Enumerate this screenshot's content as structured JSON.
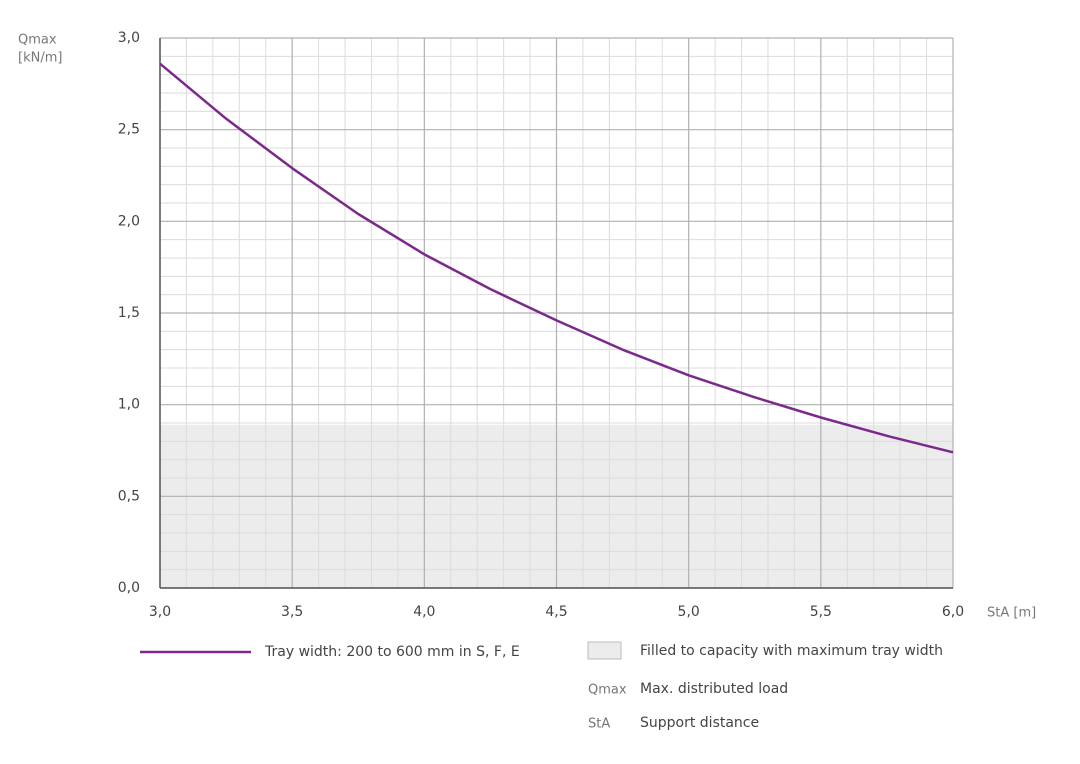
{
  "chart_data": {
    "type": "line",
    "ylabel": [
      "Qmax",
      "[kN/m]"
    ],
    "xlabel": "StA [m]",
    "x": [
      3.0,
      3.25,
      3.5,
      3.75,
      4.0,
      4.25,
      4.5,
      4.75,
      5.0,
      5.25,
      5.5,
      5.75,
      6.0
    ],
    "series": [
      {
        "name": "Tray width: 200 to 600 mm in S, F, E",
        "color": "#7b2a8c",
        "values": [
          2.86,
          2.56,
          2.29,
          2.04,
          1.82,
          1.63,
          1.46,
          1.3,
          1.16,
          1.04,
          0.93,
          0.83,
          0.74
        ]
      }
    ],
    "capacity_fill": {
      "name": "Filled to capacity with maximum tray width",
      "color": "#ececec",
      "ylim": [
        0,
        0.89
      ]
    },
    "notes": [
      {
        "symbol": "Qmax",
        "text": "Max. distributed load"
      },
      {
        "symbol": "StA",
        "text": "Support distance"
      }
    ],
    "xlim": [
      3.0,
      6.0
    ],
    "ylim": [
      0,
      3.0
    ],
    "xticks": [
      {
        "value": 3.0,
        "label": "3,0"
      },
      {
        "value": 3.5,
        "label": "3,5"
      },
      {
        "value": 4.0,
        "label": "4,0"
      },
      {
        "value": 4.5,
        "label": "4,5"
      },
      {
        "value": 5.0,
        "label": "5,0"
      },
      {
        "value": 5.5,
        "label": "5,5"
      },
      {
        "value": 6.0,
        "label": "6,0"
      }
    ],
    "yticks": [
      {
        "value": 0,
        "label": "0,0"
      },
      {
        "value": 0.5,
        "label": "0,5"
      },
      {
        "value": 1.0,
        "label": "1,0"
      },
      {
        "value": 1.5,
        "label": "1,5"
      },
      {
        "value": 2.0,
        "label": "2,0"
      },
      {
        "value": 2.5,
        "label": "2,5"
      },
      {
        "value": 3.0,
        "label": "3,0"
      }
    ],
    "grid": true
  }
}
